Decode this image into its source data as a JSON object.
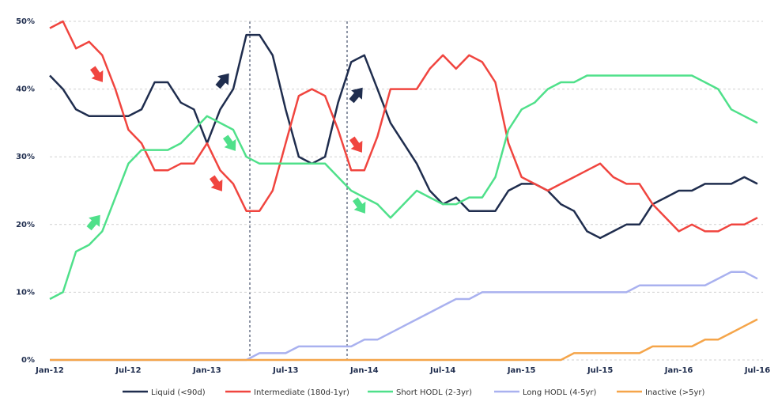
{
  "chart_data": {
    "type": "line",
    "categories": [
      "Jan-12",
      null,
      null,
      null,
      null,
      null,
      "Jul-12",
      null,
      null,
      null,
      null,
      null,
      "Jan-13",
      null,
      null,
      null,
      null,
      null,
      "Jul-13",
      null,
      null,
      null,
      null,
      null,
      "Jan-14",
      null,
      null,
      null,
      null,
      null,
      "Jul-14",
      null,
      null,
      null,
      null,
      null,
      "Jan-15",
      null,
      null,
      null,
      null,
      null,
      "Jul-15",
      null,
      null,
      null,
      null,
      null,
      "Jan-16",
      null,
      null,
      null,
      null,
      null,
      "Jul-16"
    ],
    "ylim": [
      0,
      50
    ],
    "yticks": [
      {
        "value": 0,
        "label": "0%"
      },
      {
        "value": 10,
        "label": "10%"
      },
      {
        "value": 20,
        "label": "20%"
      },
      {
        "value": 30,
        "label": "30%"
      },
      {
        "value": 40,
        "label": "40%"
      },
      {
        "value": 50,
        "label": "50%"
      }
    ],
    "grid": true,
    "series": [
      {
        "name": "Liquid (<90d)",
        "color": "#1f2d4e",
        "values": [
          42,
          40,
          37,
          36,
          36,
          36,
          36,
          37,
          41,
          41,
          38,
          37,
          32,
          37,
          40,
          48,
          48,
          45,
          37,
          30,
          29,
          30,
          38,
          44,
          45,
          40,
          35,
          32,
          29,
          25,
          23,
          24,
          22,
          22,
          22,
          25,
          26,
          26,
          25,
          23,
          22,
          19,
          18,
          19,
          20,
          20,
          23,
          24,
          25,
          25,
          26,
          26,
          26,
          27,
          26
        ]
      },
      {
        "name": "Intermediate (180d-1yr)",
        "color": "#f0453f",
        "values": [
          49,
          50,
          46,
          47,
          45,
          40,
          34,
          32,
          28,
          28,
          29,
          29,
          32,
          28,
          26,
          22,
          22,
          25,
          32,
          39,
          40,
          39,
          34,
          28,
          28,
          33,
          40,
          40,
          40,
          43,
          45,
          43,
          45,
          44,
          41,
          32,
          27,
          26,
          25,
          26,
          27,
          28,
          29,
          27,
          26,
          26,
          23,
          21,
          19,
          20,
          19,
          19,
          20,
          20,
          21
        ]
      },
      {
        "name": "Short HODL (2-3yr)",
        "color": "#4fe08a",
        "values": [
          9,
          10,
          16,
          17,
          19,
          24,
          29,
          31,
          31,
          31,
          32,
          34,
          36,
          35,
          34,
          30,
          29,
          29,
          29,
          29,
          29,
          29,
          27,
          25,
          24,
          23,
          21,
          23,
          25,
          24,
          23,
          23,
          24,
          24,
          27,
          34,
          37,
          38,
          40,
          41,
          41,
          42,
          42,
          42,
          42,
          42,
          42,
          42,
          42,
          42,
          41,
          40,
          37,
          36,
          35
        ]
      },
      {
        "name": "Long HODL (4-5yr)",
        "color": "#a9b1ef",
        "values": [
          0,
          0,
          0,
          0,
          0,
          0,
          0,
          0,
          0,
          0,
          0,
          0,
          0,
          0,
          0,
          0,
          1,
          1,
          1,
          2,
          2,
          2,
          2,
          2,
          3,
          3,
          4,
          5,
          6,
          7,
          8,
          9,
          9,
          10,
          10,
          10,
          10,
          10,
          10,
          10,
          10,
          10,
          10,
          10,
          10,
          11,
          11,
          11,
          11,
          11,
          11,
          12,
          13,
          13,
          12
        ]
      },
      {
        "name": "Inactive (>5yr)",
        "color": "#f5a54a",
        "values": [
          0,
          0,
          0,
          0,
          0,
          0,
          0,
          0,
          0,
          0,
          0,
          0,
          0,
          0,
          0,
          0,
          0,
          0,
          0,
          0,
          0,
          0,
          0,
          0,
          0,
          0,
          0,
          0,
          0,
          0,
          0,
          0,
          0,
          0,
          0,
          0,
          0,
          0,
          0,
          0,
          1,
          1,
          1,
          1,
          1,
          1,
          2,
          2,
          2,
          2,
          3,
          3,
          4,
          5,
          6
        ]
      }
    ]
  }
}
